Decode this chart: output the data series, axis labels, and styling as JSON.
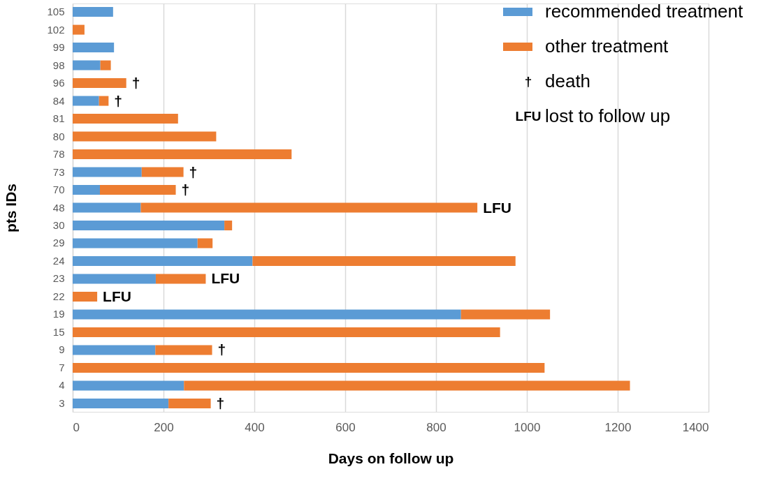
{
  "chart_data": {
    "type": "bar",
    "orientation": "horizontal",
    "stacked": true,
    "xlabel": "Days on follow up",
    "ylabel": "pts IDs",
    "categories": [
      "105",
      "102",
      "99",
      "98",
      "96",
      "84",
      "81",
      "80",
      "78",
      "73",
      "70",
      "48",
      "30",
      "29",
      "24",
      "23",
      "22",
      "19",
      "15",
      "9",
      "7",
      "4",
      "3"
    ],
    "series": [
      {
        "name": "recommended treatment",
        "color": "#5b9bd5",
        "values": [
          89,
          null,
          91,
          61,
          null,
          58,
          null,
          null,
          null,
          152,
          60,
          150,
          334,
          275,
          396,
          183,
          null,
          855,
          null,
          182,
          null,
          245,
          211
        ]
      },
      {
        "name": "other treatment",
        "color": "#ed7d31",
        "values": [
          null,
          26,
          null,
          23,
          118,
          21,
          232,
          316,
          482,
          92,
          167,
          741,
          17,
          33,
          579,
          110,
          54,
          196,
          941,
          125,
          1039,
          982,
          93
        ]
      }
    ],
    "xlim": [
      0,
      1400
    ],
    "xticks": [
      0,
      200,
      400,
      600,
      800,
      1000,
      1200,
      1400
    ],
    "grid": "x",
    "legend": "top right",
    "annotations": [
      {
        "text": "†",
        "x": 118,
        "y": "96"
      },
      {
        "text": "†",
        "x": 79,
        "y": "84"
      },
      {
        "text": "†",
        "x": 244,
        "y": "73"
      },
      {
        "text": "†",
        "x": 227,
        "y": "70"
      },
      {
        "text": "LFU",
        "x": 891,
        "y": "48"
      },
      {
        "text": "LFU",
        "x": 293,
        "y": "23"
      },
      {
        "text": "LFU",
        "x": 54,
        "y": "22"
      },
      {
        "text": "†",
        "x": 307,
        "y": "9"
      },
      {
        "text": "†",
        "x": 304,
        "y": "3"
      },
      "† death",
      "LFU lost to follow up"
    ]
  }
}
